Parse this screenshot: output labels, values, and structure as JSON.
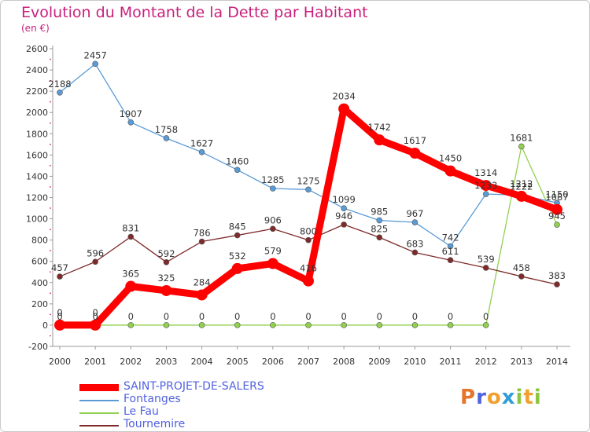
{
  "header": {
    "title": "Evolution du Montant de la Dette par Habitant",
    "subtitle": "(en €)"
  },
  "logo": {
    "letters": [
      "P",
      "r",
      "o",
      "x",
      "i",
      "t",
      "i"
    ]
  },
  "colors": {
    "saint_projet": "#ff0000",
    "fontanges": "#5b9bd5",
    "le_fau": "#92d050",
    "tournemire": "#7f2a2a",
    "title": "#c8217c",
    "legend_text": "#5161e0",
    "logo": [
      "#e8742a",
      "#5161e0",
      "#f0a030",
      "#2f9ed8",
      "#8bc53f",
      "#f0a030",
      "#8bc53f"
    ]
  },
  "chart_data": {
    "type": "line",
    "title": "Evolution du Montant de la Dette par Habitant",
    "ylabel": "(en €)",
    "xlabel": "",
    "ylim": [
      -200,
      2600
    ],
    "yticks": [
      -200,
      0,
      200,
      400,
      600,
      800,
      1000,
      1200,
      1400,
      1600,
      1800,
      2000,
      2200,
      2400,
      2600
    ],
    "grid": false,
    "legend_position": "bottom-left",
    "categories": [
      "2000",
      "2001",
      "2002",
      "2003",
      "2004",
      "2005",
      "2006",
      "2007",
      "2008",
      "2009",
      "2010",
      "2011",
      "2012",
      "2013",
      "2014"
    ],
    "series": [
      {
        "name": "SAINT-PROJET-DE-SALERS",
        "color": "#ff0000",
        "values": [
          0,
          0,
          365,
          325,
          284,
          532,
          579,
          416,
          2034,
          1742,
          1617,
          1450,
          1314,
          1212,
          1087
        ]
      },
      {
        "name": "Fontanges",
        "color": "#5b9bd5",
        "values": [
          2188,
          2457,
          1907,
          1758,
          1627,
          1460,
          1285,
          1275,
          1099,
          985,
          967,
          742,
          1233,
          1222,
          1150
        ]
      },
      {
        "name": "Le Fau",
        "color": "#92d050",
        "values": [
          0,
          0,
          0,
          0,
          0,
          0,
          0,
          0,
          0,
          0,
          0,
          0,
          0,
          1681,
          945
        ]
      },
      {
        "name": "Tournemire",
        "color": "#7f2a2a",
        "values": [
          457,
          596,
          831,
          592,
          786,
          845,
          906,
          800,
          946,
          825,
          683,
          611,
          539,
          458,
          383
        ]
      }
    ]
  }
}
